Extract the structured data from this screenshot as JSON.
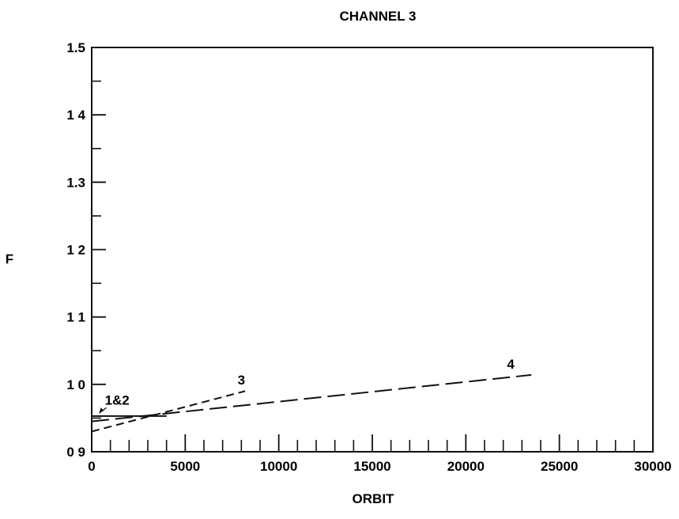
{
  "chart_data": {
    "type": "line",
    "title": "CHANNEL 3",
    "xlabel": "ORBIT",
    "ylabel": "F",
    "xlim": [
      0,
      30000
    ],
    "ylim": [
      0.9,
      1.5
    ],
    "x_ticks": [
      0,
      5000,
      10000,
      15000,
      20000,
      25000,
      30000
    ],
    "x_tick_labels": [
      "0",
      "5000",
      "10000",
      "15000",
      "20000",
      "25000",
      "30000"
    ],
    "y_ticks": [
      0.9,
      1.0,
      1.1,
      1.2,
      1.3,
      1.4,
      1.5
    ],
    "y_tick_labels": [
      "0 9",
      "1 0",
      "1 1",
      "1 2",
      "1.3",
      "1 4",
      "1.5"
    ],
    "x_minor_step": 1000,
    "y_minor_step": 0.05,
    "grid": false,
    "series": [
      {
        "name": "1&2",
        "x": [
          0,
          4000
        ],
        "y": [
          0.953,
          0.953
        ],
        "style": "solid"
      },
      {
        "name": "3",
        "x": [
          0,
          8200
        ],
        "y": [
          0.93,
          0.99
        ],
        "style": "dashed"
      },
      {
        "name": "4",
        "x": [
          0,
          23500
        ],
        "y": [
          0.945,
          1.014
        ],
        "style": "longdash"
      }
    ],
    "series_labels": [
      {
        "text": "1&2",
        "x": 700,
        "y": 0.97,
        "arrow_to": [
          400,
          0.955
        ]
      },
      {
        "text": "3",
        "x": 7800,
        "y": 1.0
      },
      {
        "text": "4",
        "x": 22200,
        "y": 1.023
      }
    ]
  }
}
